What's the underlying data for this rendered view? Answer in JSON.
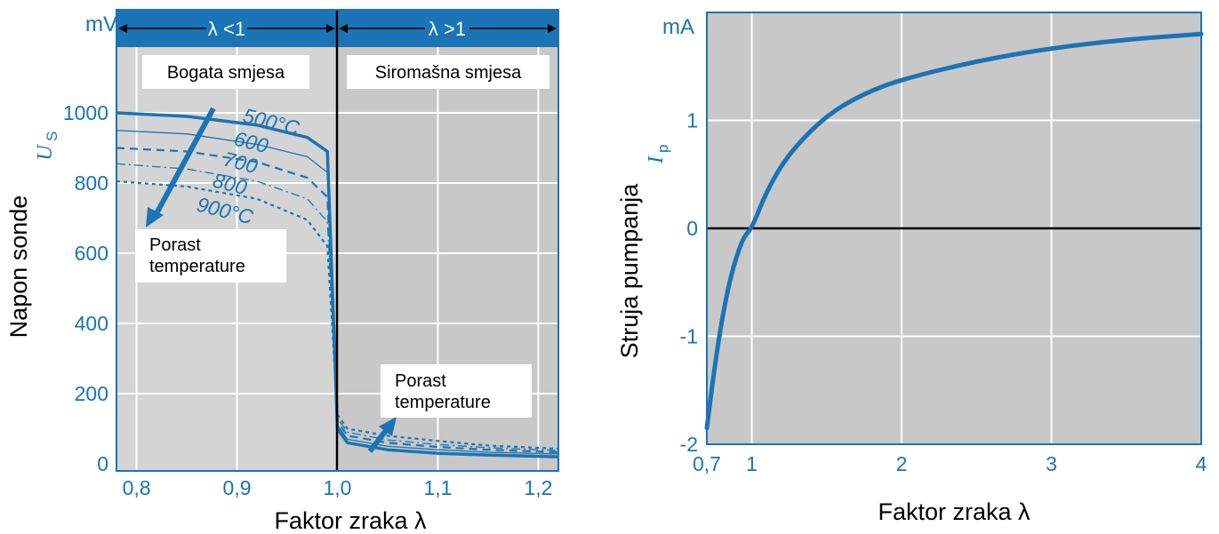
{
  "colors": {
    "plot_bg_left": "#d4d4d4",
    "plot_bg_right": "#c8c8c8",
    "header_band": "#1a74b5",
    "curve": "#1a74b5",
    "grid": "#ffffff",
    "axis_text": "#1a74b5",
    "divider": "#000000"
  },
  "chart_data": [
    {
      "type": "line",
      "x_range": [
        0.78,
        1.22
      ],
      "y_range": [
        0,
        1000
      ],
      "y_unit": "mV",
      "x_ticks": [
        "0,8",
        "0,9",
        "1,0",
        "1,1",
        "1,2"
      ],
      "y_ticks": [
        "0",
        "200",
        "400",
        "600",
        "800",
        "1000"
      ],
      "ylabel_text": "Napon sonde",
      "ylabel_symbol": "U",
      "ylabel_subscript": "S",
      "xlabel": "Faktor zraka λ",
      "grid": true,
      "regions": [
        {
          "lambda_label": "λ <1",
          "name": "Bogata smjesa"
        },
        {
          "lambda_label": "λ >1",
          "name": "Siromašna smjesa"
        }
      ],
      "annotations": [
        "Porast temperature",
        "Porast temperature"
      ],
      "series": [
        {
          "name": "500°C",
          "style": "solid-thick",
          "x": [
            0.78,
            0.85,
            0.92,
            0.97,
            0.99,
            1.0,
            1.01,
            1.05,
            1.1,
            1.15,
            1.22
          ],
          "y": [
            1000,
            990,
            965,
            930,
            890,
            100,
            60,
            40,
            30,
            25,
            20
          ]
        },
        {
          "name": "600",
          "style": "solid-thin",
          "x": [
            0.78,
            0.85,
            0.92,
            0.97,
            0.99,
            1.0,
            1.01,
            1.05,
            1.1,
            1.15,
            1.22
          ],
          "y": [
            950,
            940,
            910,
            875,
            830,
            110,
            70,
            50,
            40,
            33,
            28
          ]
        },
        {
          "name": "700",
          "style": "dashed",
          "x": [
            0.78,
            0.85,
            0.92,
            0.97,
            0.99,
            1.0,
            1.01,
            1.05,
            1.1,
            1.15,
            1.22
          ],
          "y": [
            900,
            890,
            860,
            815,
            760,
            120,
            80,
            60,
            48,
            40,
            33
          ]
        },
        {
          "name": "800",
          "style": "dashdot",
          "x": [
            0.78,
            0.85,
            0.92,
            0.97,
            0.99,
            1.0,
            1.01,
            1.05,
            1.1,
            1.15,
            1.22
          ],
          "y": [
            855,
            840,
            805,
            755,
            690,
            130,
            90,
            68,
            55,
            46,
            38
          ]
        },
        {
          "name": "900°C",
          "style": "dotted",
          "x": [
            0.78,
            0.85,
            0.92,
            0.97,
            0.99,
            1.0,
            1.01,
            1.05,
            1.1,
            1.15,
            1.22
          ],
          "y": [
            805,
            790,
            755,
            695,
            620,
            140,
            100,
            80,
            65,
            52,
            43
          ]
        }
      ]
    },
    {
      "type": "line",
      "x_range": [
        0.7,
        4
      ],
      "y_range": [
        -2,
        2
      ],
      "y_unit": "mA",
      "x_ticks": [
        "0,7",
        "1",
        "2",
        "3",
        "4"
      ],
      "y_ticks": [
        "-2",
        "-1",
        "0",
        "1"
      ],
      "ylabel_text": "Struja pumpanja",
      "ylabel_symbol": "I",
      "ylabel_subscript": "p",
      "xlabel": "Faktor zraka λ",
      "grid": true,
      "series": [
        {
          "name": "",
          "x": [
            0.7,
            0.75,
            0.8,
            0.85,
            0.9,
            0.95,
            1.0,
            1.1,
            1.25,
            1.5,
            1.75,
            2.0,
            2.5,
            3.0,
            3.5,
            4.0
          ],
          "y": [
            -1.85,
            -1.3,
            -0.85,
            -0.5,
            -0.25,
            -0.07,
            0.0,
            0.35,
            0.7,
            1.05,
            1.25,
            1.38,
            1.55,
            1.67,
            1.75,
            1.8
          ]
        }
      ]
    }
  ]
}
